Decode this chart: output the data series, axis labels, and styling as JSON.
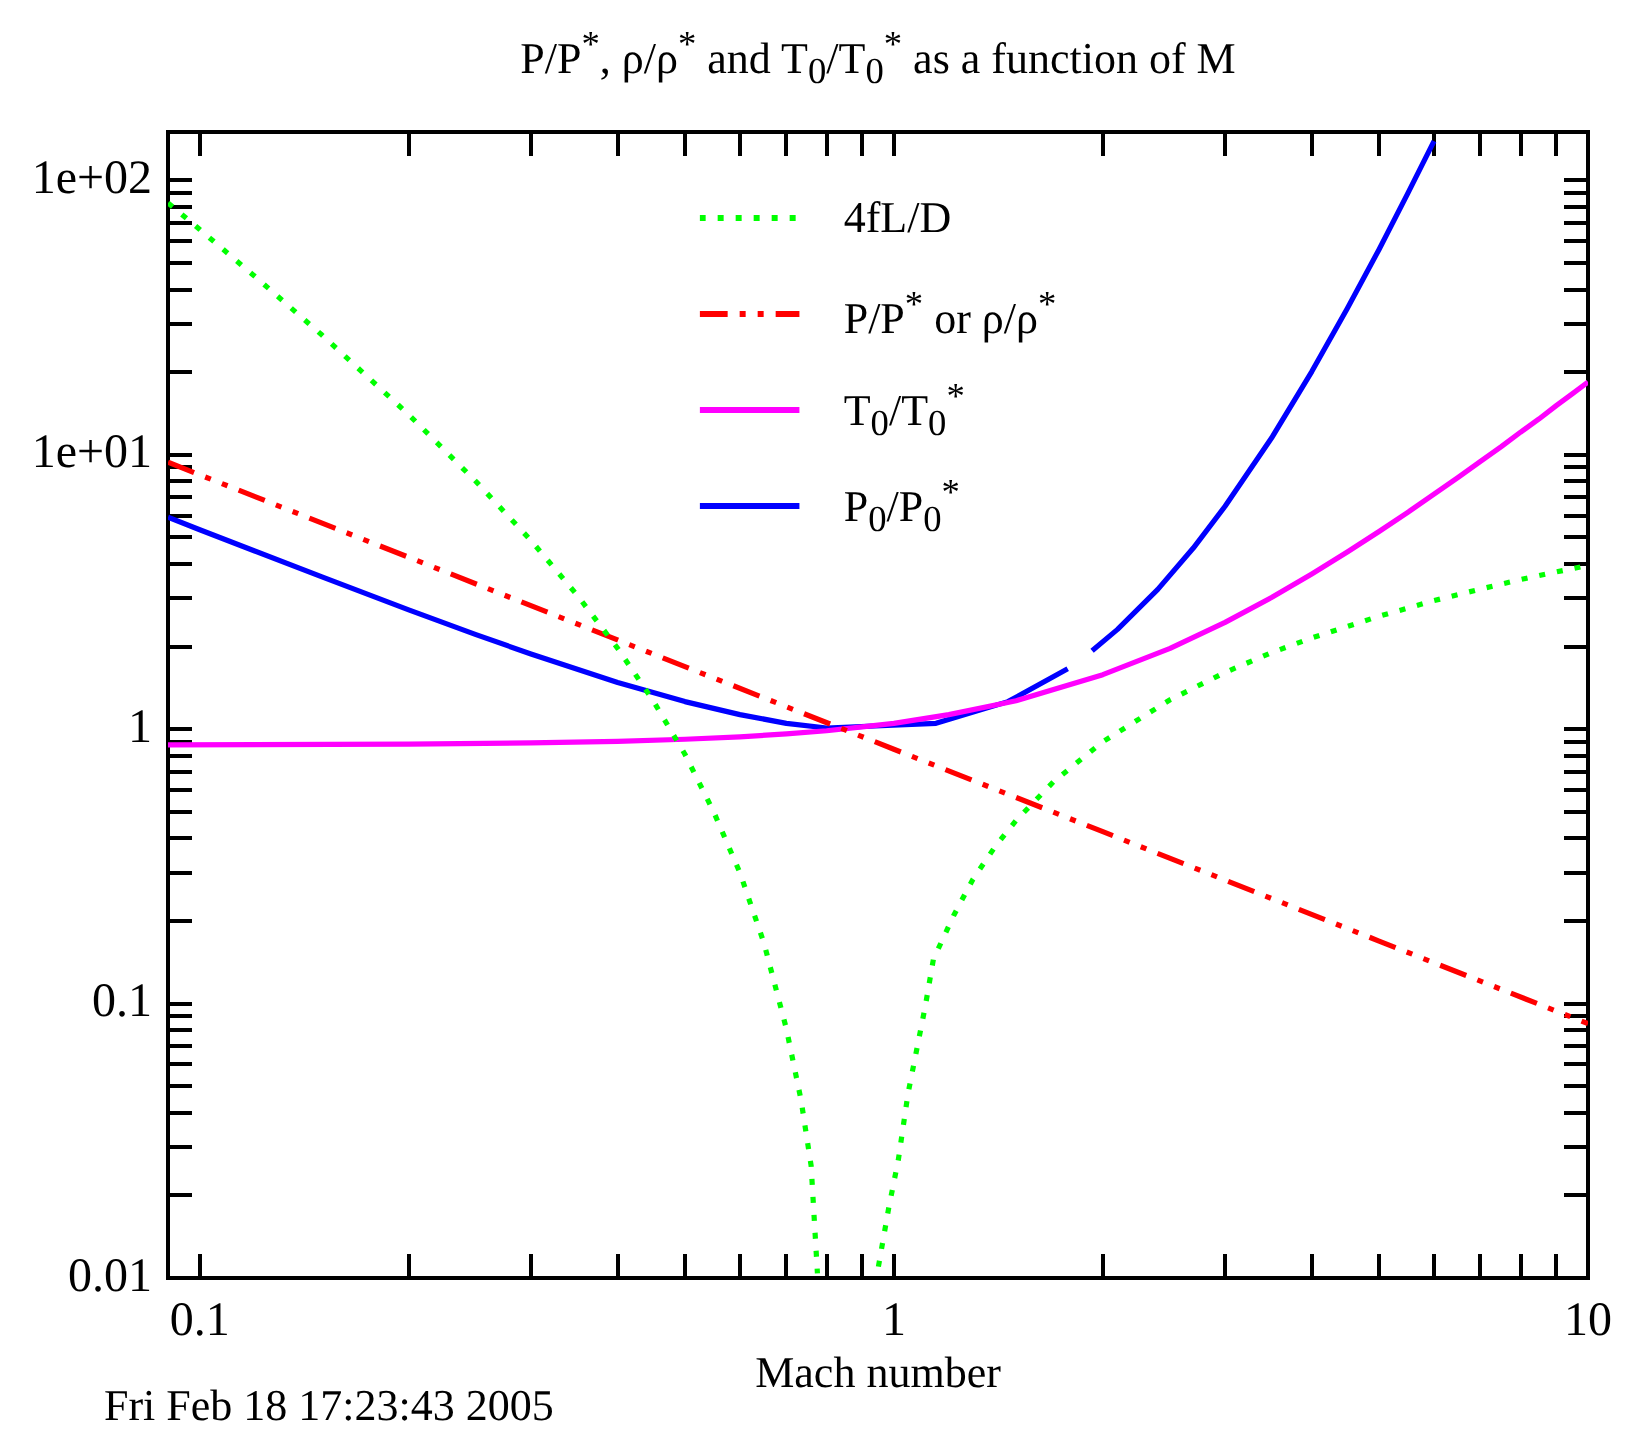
{
  "chart_data": {
    "type": "line",
    "title": "P/P$^{*}$, ρ/ρ$^{*}$ and T$_{0}$/T$_{0}$$^{*}$ as a function of M",
    "xlabel": "Mach number",
    "log": "xy",
    "xlim": [
      0.09,
      10
    ],
    "ylim": [
      0.01,
      150
    ],
    "xticks": [
      0.1,
      {
        "value": 0.2,
        "label": null
      },
      {
        "value": 0.3,
        "label": null
      },
      {
        "value": 0.4,
        "label": null
      },
      {
        "value": 0.5,
        "label": null
      },
      {
        "value": 0.6,
        "label": null
      },
      {
        "value": 0.7,
        "label": null
      },
      {
        "value": 0.8,
        "label": null
      },
      {
        "value": 0.9,
        "label": null
      },
      1,
      {
        "value": 2,
        "label": null
      },
      {
        "value": 3,
        "label": null
      },
      {
        "value": 4,
        "label": null
      },
      {
        "value": 5,
        "label": null
      },
      {
        "value": 6,
        "label": null
      },
      {
        "value": 7,
        "label": null
      },
      {
        "value": 8,
        "label": null
      },
      {
        "value": 9,
        "label": null
      },
      10
    ],
    "yticks": [
      0.01,
      {
        "value": 0.02,
        "label": null
      },
      {
        "value": 0.03,
        "label": null
      },
      {
        "value": 0.04,
        "label": null
      },
      {
        "value": 0.05,
        "label": null
      },
      {
        "value": 0.06,
        "label": null
      },
      {
        "value": 0.07,
        "label": null
      },
      {
        "value": 0.08,
        "label": null
      },
      {
        "value": 0.09,
        "label": null
      },
      0.1,
      {
        "value": 0.2,
        "label": null
      },
      {
        "value": 0.3,
        "label": null
      },
      {
        "value": 0.4,
        "label": null
      },
      {
        "value": 0.5,
        "label": null
      },
      {
        "value": 0.6,
        "label": null
      },
      {
        "value": 0.7,
        "label": null
      },
      {
        "value": 0.8,
        "label": null
      },
      {
        "value": 0.9,
        "label": null
      },
      1,
      {
        "value": 2,
        "label": null
      },
      {
        "value": 3,
        "label": null
      },
      {
        "value": 4,
        "label": null
      },
      {
        "value": 5,
        "label": null
      },
      {
        "value": 6,
        "label": null
      },
      {
        "value": 7,
        "label": null
      },
      {
        "value": 8,
        "label": null
      },
      {
        "value": 9,
        "label": null
      },
      {
        "value": 10,
        "label": "1e+01"
      },
      {
        "value": 20,
        "label": null
      },
      {
        "value": 30,
        "label": null
      },
      {
        "value": 40,
        "label": null
      },
      {
        "value": 50,
        "label": null
      },
      {
        "value": 60,
        "label": null
      },
      {
        "value": 70,
        "label": null
      },
      {
        "value": 80,
        "label": null
      },
      {
        "value": 90,
        "label": null
      },
      {
        "value": 100,
        "label": "1e+02"
      }
    ],
    "legend": "top",
    "annotations": [
      "Fri Feb 18 17:23:43 2005"
    ],
    "series": [
      {
        "name": "4fL/D",
        "color": "#00ff00",
        "line_style": "dotted",
        "x": [
          0.09,
          0.1,
          0.12,
          0.15,
          0.2,
          0.25,
          0.3,
          0.35,
          0.4,
          0.45,
          0.5,
          0.55,
          0.6,
          0.65,
          0.7,
          0.735,
          0.76,
          0.776,
          0.86,
          0.95,
          0.983,
          1.015,
          1.048,
          1.08,
          1.11,
          1.14,
          1.22,
          1.3,
          1.4,
          1.5,
          1.7,
          2,
          2.5,
          3,
          3.5,
          4,
          5,
          6,
          7,
          8,
          9,
          10
        ],
        "values": [
          82.7,
          66.2,
          44.7,
          27.3,
          14.0,
          7.99,
          4.87,
          3.07,
          1.97,
          1.27,
          0.81,
          0.5,
          0.3,
          0.166,
          0.081,
          0.0445,
          0.0256,
          0.0104,
          null,
          0.011,
          0.018,
          0.027,
          0.047,
          0.069,
          0.098,
          0.145,
          0.21,
          0.284,
          0.374,
          0.465,
          0.645,
          0.9,
          1.28,
          1.61,
          1.9,
          2.15,
          2.58,
          2.94,
          3.24,
          3.51,
          3.74,
          3.95
        ]
      },
      {
        "name": "P/P$^{*}$ or ρ/ρ$^{*}$",
        "color": "#ff0000",
        "line_style": "dashed",
        "x": [
          0.09,
          0.1,
          0.2,
          0.5,
          1,
          2,
          5,
          10
        ],
        "values": [
          9.39,
          8.45,
          4.23,
          1.69,
          0.845,
          0.423,
          0.169,
          0.0845
        ]
      },
      {
        "name": "T$_{0}$/T$_{0}$$^{*}$",
        "color": "#ff00ff",
        "x": [
          0.09,
          0.2,
          0.3,
          0.4,
          0.5,
          0.6,
          0.7,
          0.8,
          0.9,
          1,
          1.2,
          1.5,
          2,
          2.5,
          3,
          3.5,
          4,
          4.5,
          5,
          5.5,
          6,
          6.5,
          7,
          7.5,
          8,
          8.5,
          9,
          9.5,
          10
        ],
        "values": [
          0.876,
          0.882,
          0.891,
          0.903,
          0.919,
          0.938,
          0.961,
          0.987,
          1.02,
          1.05,
          1.13,
          1.27,
          1.58,
          1.97,
          2.45,
          3.02,
          3.68,
          4.42,
          5.25,
          6.17,
          7.18,
          8.27,
          9.45,
          10.7,
          12.1,
          13.5,
          15.1,
          16.7,
          18.4
        ]
      },
      {
        "name": "P$_{0}$/P$_{0}$$^{*}$",
        "color": "#0000ff",
        "x": [
          0.09,
          0.1,
          0.12,
          0.15,
          0.2,
          0.25,
          0.3,
          0.4,
          0.5,
          0.6,
          0.7,
          0.8,
          1.15,
          1.46,
          1.78,
          1.85,
          1.93,
          2.1,
          2.4,
          2.7,
          3,
          3.5,
          4,
          4.5,
          5,
          5.5,
          6
        ],
        "values": [
          5.92,
          5.33,
          4.46,
          3.59,
          2.72,
          2.21,
          1.88,
          1.48,
          1.26,
          1.13,
          1.05,
          1.01,
          1.05,
          1.26,
          1.66,
          null,
          1.93,
          2.31,
          3.23,
          4.57,
          6.49,
          11.5,
          20.1,
          34.1,
          56.0,
          89.6,
          139
        ]
      }
    ]
  }
}
